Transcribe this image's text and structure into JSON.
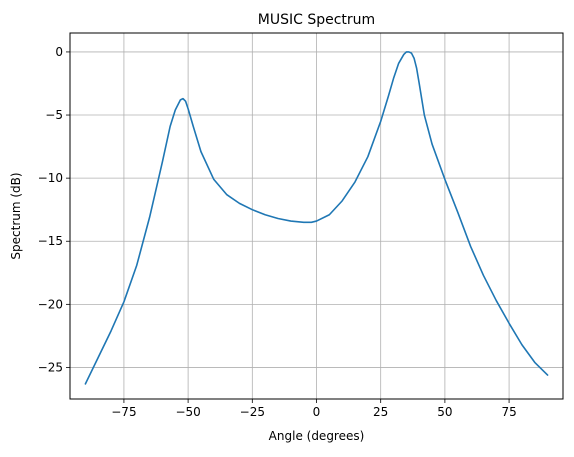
{
  "chart_data": {
    "type": "line",
    "title": "MUSIC Spectrum",
    "xlabel": "Angle (degrees)",
    "ylabel": "Spectrum (dB)",
    "xlim": [
      -96,
      96
    ],
    "ylim": [
      -27.5,
      1.5
    ],
    "xticks": [
      -75,
      -50,
      -25,
      0,
      25,
      50,
      75
    ],
    "yticks": [
      0,
      -5,
      -10,
      -15,
      -20,
      -25
    ],
    "xtick_labels": [
      "−75",
      "−50",
      "−25",
      "0",
      "25",
      "50",
      "75"
    ],
    "ytick_labels": [
      "0",
      "−5",
      "−10",
      "−15",
      "−20",
      "−25"
    ],
    "grid": true,
    "series": [
      {
        "color": "#1f77b4",
        "x": [
          -90,
          -85,
          -80,
          -75,
          -70,
          -65,
          -60,
          -57,
          -55,
          -53,
          -52,
          -51,
          -50,
          -48,
          -45,
          -40,
          -35,
          -30,
          -25,
          -20,
          -15,
          -10,
          -5,
          -2,
          0,
          5,
          10,
          15,
          20,
          25,
          28,
          30,
          32,
          34,
          35,
          36,
          37,
          38,
          39,
          40,
          42,
          45,
          50,
          55,
          60,
          65,
          70,
          75,
          80,
          85,
          90
        ],
        "y": [
          -26.3,
          -24.2,
          -22.1,
          -19.8,
          -16.9,
          -13.1,
          -8.7,
          -5.9,
          -4.6,
          -3.8,
          -3.7,
          -3.9,
          -4.5,
          -5.9,
          -7.9,
          -10.1,
          -11.3,
          -12.0,
          -12.5,
          -12.9,
          -13.2,
          -13.4,
          -13.5,
          -13.5,
          -13.4,
          -12.9,
          -11.8,
          -10.3,
          -8.3,
          -5.5,
          -3.5,
          -2.1,
          -0.9,
          -0.2,
          0.0,
          0.0,
          -0.1,
          -0.5,
          -1.3,
          -2.5,
          -5.0,
          -7.3,
          -10.1,
          -12.7,
          -15.4,
          -17.7,
          -19.7,
          -21.5,
          -23.2,
          -24.6,
          -25.6
        ]
      }
    ]
  }
}
